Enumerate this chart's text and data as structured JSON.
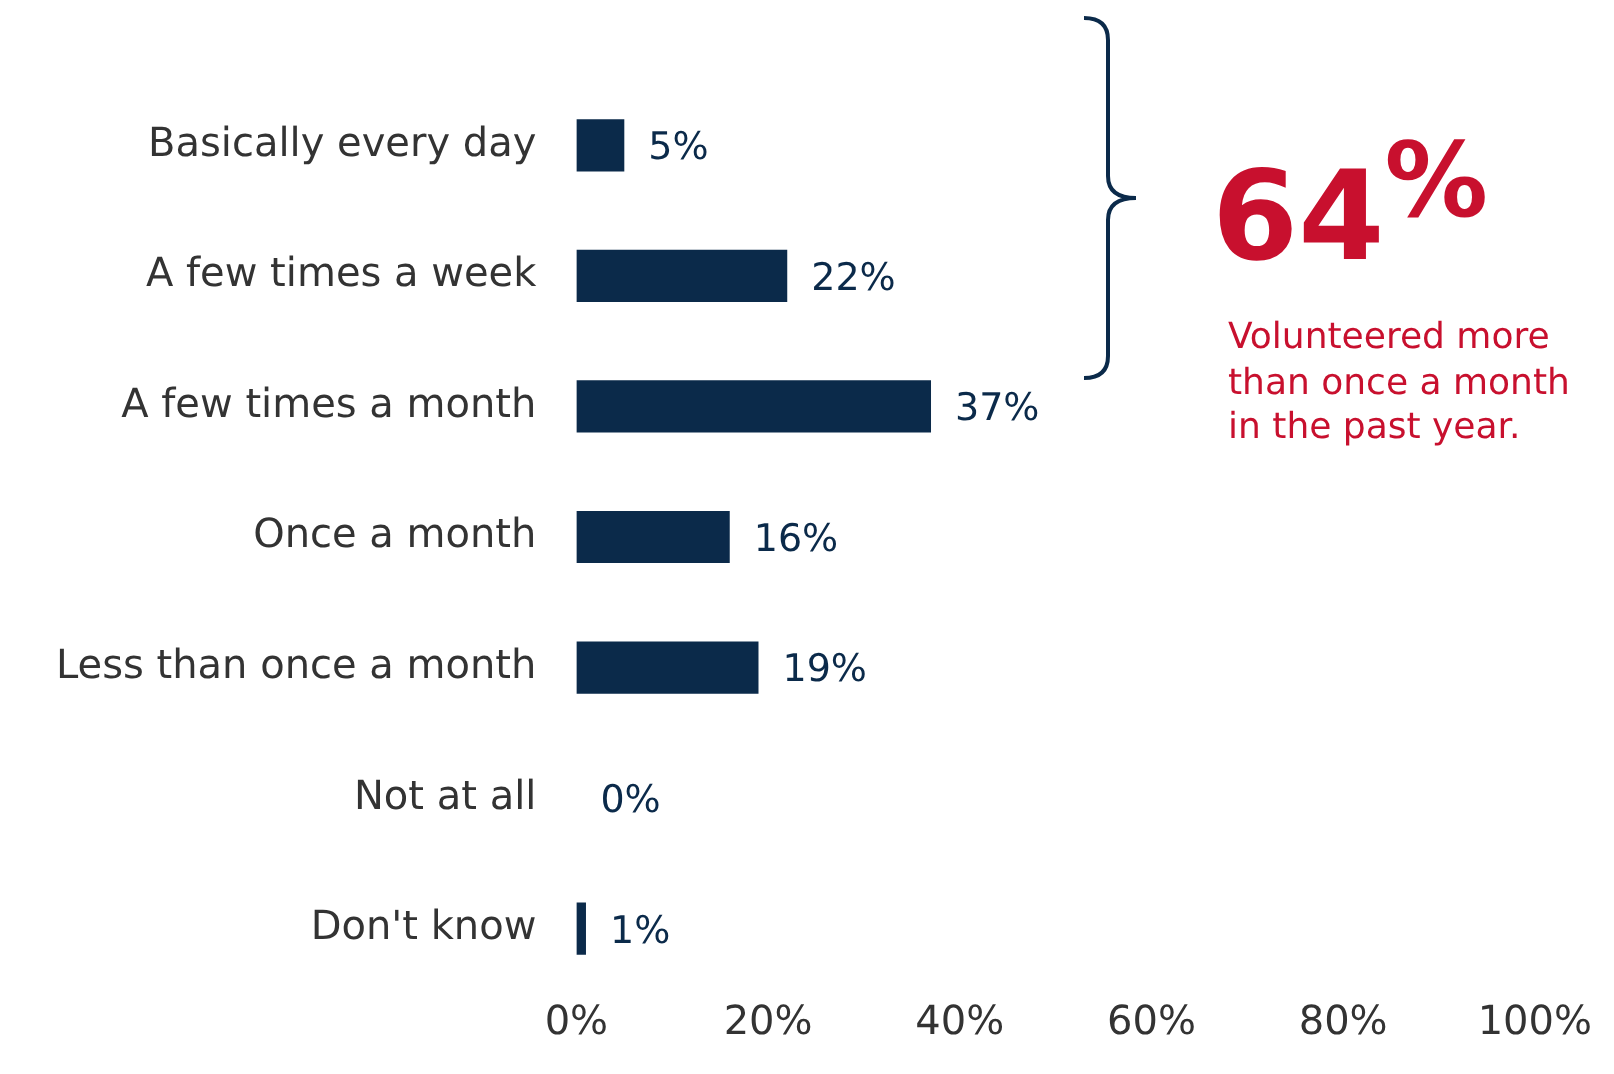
{
  "chart_data": {
    "type": "bar",
    "orientation": "horizontal",
    "categories": [
      "Basically every day",
      "A few times a week",
      "A few times a month",
      "Once a month",
      "Less than once a month",
      "Not at all",
      "Don't know"
    ],
    "values": [
      5,
      22,
      37,
      16,
      19,
      0,
      1
    ],
    "value_labels": [
      "5%",
      "22%",
      "37%",
      "16%",
      "19%",
      "0%",
      "1%"
    ],
    "color": "#0b2a4a",
    "xlim": [
      0,
      100
    ],
    "xticks": [
      {
        "value": 0,
        "label": "0%"
      },
      {
        "value": 20,
        "label": "20%"
      },
      {
        "value": 40,
        "label": "40%"
      },
      {
        "value": 60,
        "label": "60%"
      },
      {
        "value": 80,
        "label": "80%"
      },
      {
        "value": 100,
        "label": "100%"
      }
    ],
    "grid": false,
    "legend": false,
    "annotations": [
      "64$^{%}$",
      "Volunteered more than once a month in the past year."
    ]
  }
}
